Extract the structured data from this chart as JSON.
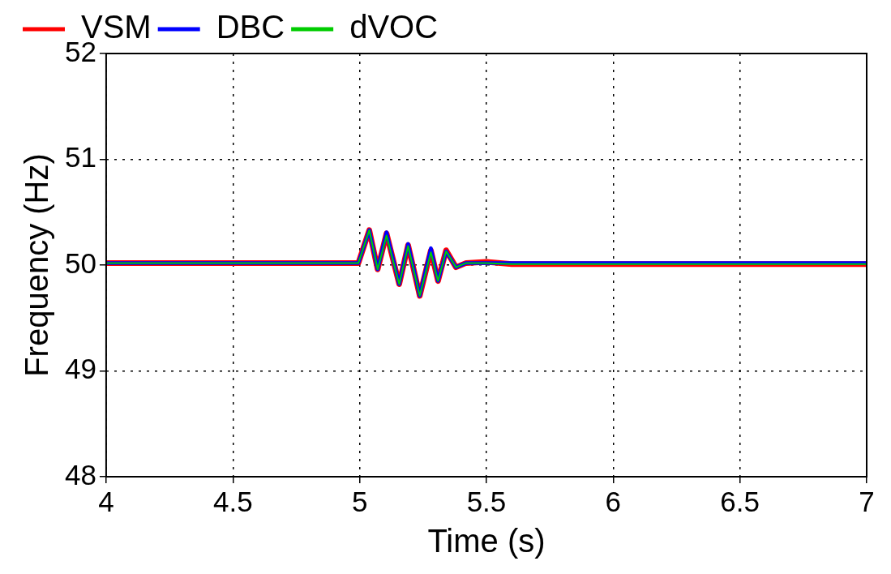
{
  "chart_data": {
    "type": "line",
    "xlabel": "Time (s)",
    "ylabel": "Frequency (Hz)",
    "xlim": [
      4,
      7
    ],
    "xticks": [
      4,
      4.5,
      5,
      5.5,
      6,
      6.5,
      7
    ],
    "ylim": [
      48,
      52
    ],
    "yticks": [
      48,
      49,
      50,
      51,
      52
    ],
    "grid": true,
    "legend": "top left",
    "marker": "none",
    "line_style": "solid",
    "series": [
      {
        "name": "VSM",
        "color": "#ff0000",
        "x": [
          4,
          4.995,
          5.038,
          5.071,
          5.106,
          5.156,
          5.191,
          5.237,
          5.281,
          5.309,
          5.341,
          5.38,
          5.42,
          5.5,
          5.6,
          7
        ],
        "values": [
          50.02,
          50.02,
          50.33,
          49.96,
          50.3,
          49.82,
          50.19,
          49.71,
          50.14,
          49.85,
          50.14,
          49.98,
          50.02,
          50.03,
          50.01,
          50.01
        ]
      },
      {
        "name": "DBC",
        "color": "#0000ff",
        "x": [
          4,
          4.995,
          5.038,
          5.071,
          5.106,
          5.156,
          5.191,
          5.237,
          5.281,
          5.309,
          5.341,
          5.38,
          5.42,
          5.5,
          5.6,
          7
        ],
        "values": [
          50.02,
          50.02,
          50.33,
          49.96,
          50.31,
          49.82,
          50.2,
          49.71,
          50.16,
          49.85,
          50.13,
          49.98,
          50.02,
          50.02,
          50.02,
          50.02
        ]
      },
      {
        "name": "dVOC",
        "color": "#00cc00",
        "x": [
          4,
          4.995,
          5.038,
          5.071,
          5.106,
          5.156,
          5.191,
          5.237,
          5.281,
          5.309,
          5.341,
          5.38,
          5.42,
          5.5,
          5.6,
          7
        ],
        "values": [
          50.02,
          50.02,
          50.33,
          49.96,
          50.28,
          49.82,
          50.18,
          49.71,
          50.12,
          49.85,
          50.13,
          49.98,
          50.02,
          50.02,
          50.01,
          50.01
        ]
      }
    ]
  }
}
